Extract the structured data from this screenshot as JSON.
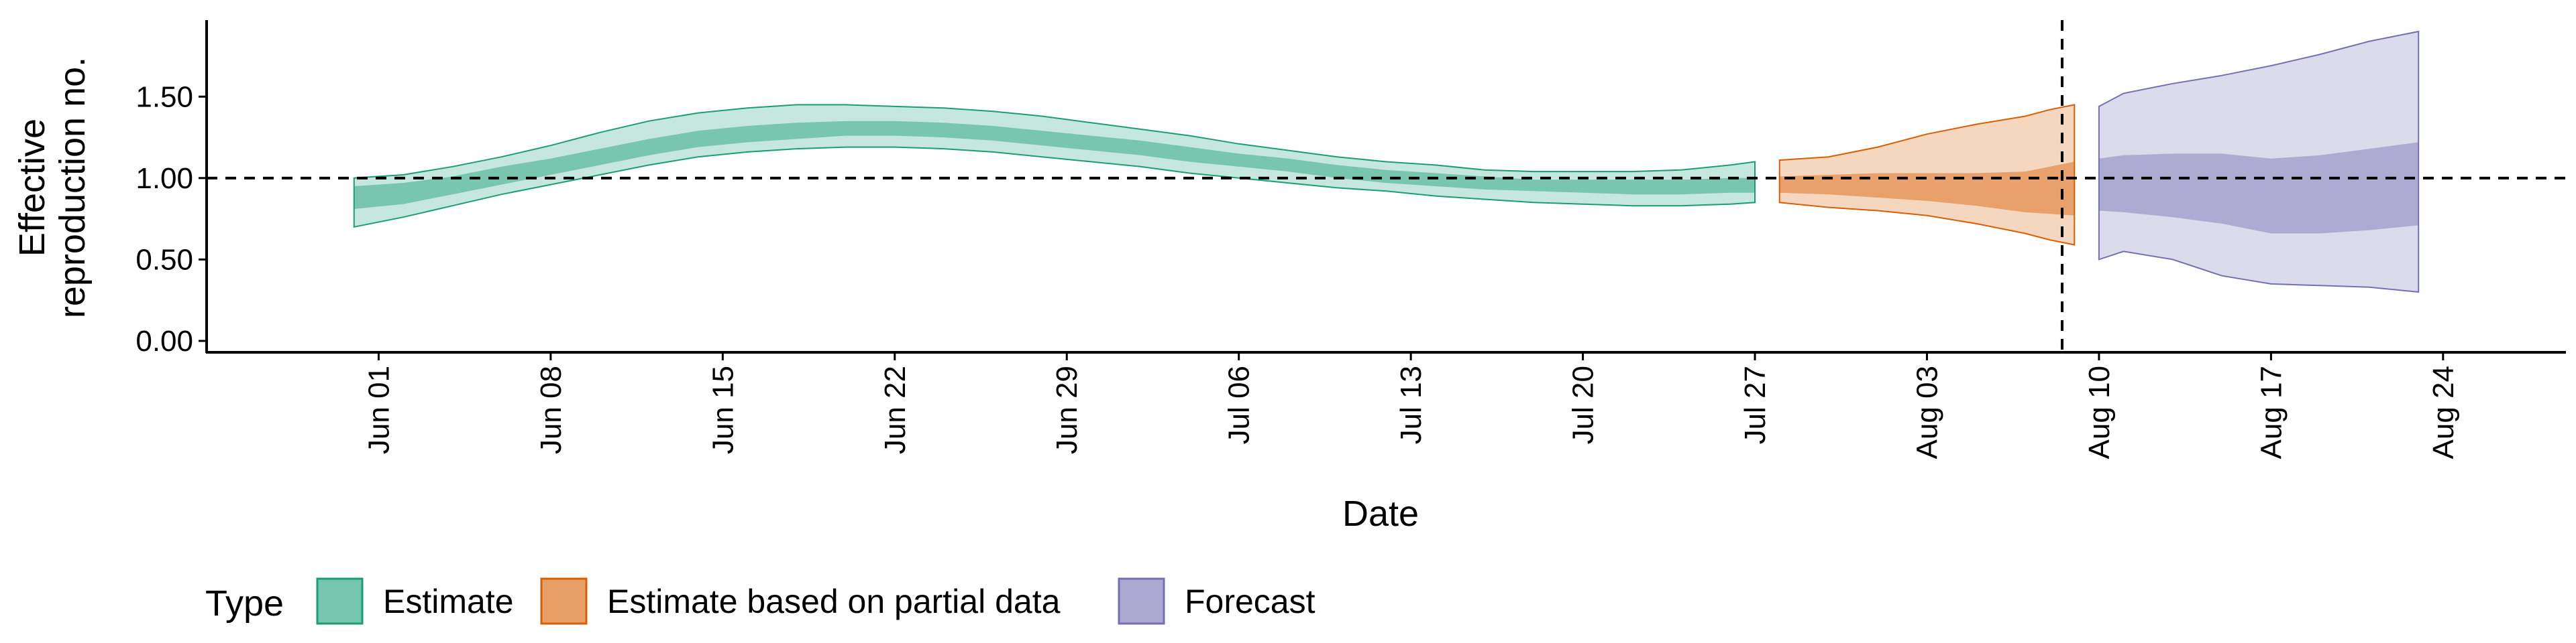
{
  "chart_data": {
    "type": "area",
    "xlabel": "Date",
    "ylabel_lines": [
      "Effective",
      "reproduction no."
    ],
    "yticks": [
      "0.00",
      "0.50",
      "1.00",
      "1.50"
    ],
    "ylim": [
      -0.07,
      1.97
    ],
    "reference_line_y": 1.0,
    "forecast_start_line_x": "2020-08-09",
    "xlim": [
      "2020-05-25",
      "2020-08-29"
    ],
    "xticks": [
      {
        "date": "2020-06-01",
        "label": "Jun 01"
      },
      {
        "date": "2020-06-08",
        "label": "Jun 08"
      },
      {
        "date": "2020-06-15",
        "label": "Jun 15"
      },
      {
        "date": "2020-06-22",
        "label": "Jun 22"
      },
      {
        "date": "2020-06-29",
        "label": "Jun 29"
      },
      {
        "date": "2020-07-06",
        "label": "Jul 06"
      },
      {
        "date": "2020-07-13",
        "label": "Jul 13"
      },
      {
        "date": "2020-07-20",
        "label": "Jul 20"
      },
      {
        "date": "2020-07-27",
        "label": "Jul 27"
      },
      {
        "date": "2020-08-03",
        "label": "Aug 03"
      },
      {
        "date": "2020-08-10",
        "label": "Aug 10"
      },
      {
        "date": "2020-08-17",
        "label": "Aug 17"
      },
      {
        "date": "2020-08-24",
        "label": "Aug 24"
      }
    ],
    "legend": {
      "title": "Type",
      "placement": "bottom-left",
      "items": [
        {
          "label": "Estimate",
          "color": "#1b9e77"
        },
        {
          "label": "Estimate based on partial data",
          "color": "#d95f02"
        },
        {
          "label": "Forecast",
          "color": "#7570b3"
        }
      ]
    },
    "series": [
      {
        "name": "Estimate",
        "color": "#1b9e77",
        "x": [
          "2020-05-31",
          "2020-06-02",
          "2020-06-04",
          "2020-06-06",
          "2020-06-08",
          "2020-06-10",
          "2020-06-12",
          "2020-06-14",
          "2020-06-16",
          "2020-06-18",
          "2020-06-20",
          "2020-06-22",
          "2020-06-24",
          "2020-06-26",
          "2020-06-28",
          "2020-06-30",
          "2020-07-02",
          "2020-07-04",
          "2020-07-06",
          "2020-07-08",
          "2020-07-10",
          "2020-07-12",
          "2020-07-14",
          "2020-07-16",
          "2020-07-18",
          "2020-07-20",
          "2020-07-22",
          "2020-07-24",
          "2020-07-26",
          "2020-07-27"
        ],
        "lower90": [
          0.7,
          0.76,
          0.83,
          0.9,
          0.96,
          1.02,
          1.08,
          1.13,
          1.16,
          1.18,
          1.19,
          1.19,
          1.18,
          1.16,
          1.13,
          1.1,
          1.07,
          1.03,
          1.0,
          0.97,
          0.94,
          0.92,
          0.89,
          0.87,
          0.85,
          0.84,
          0.83,
          0.83,
          0.84,
          0.85
        ],
        "lower50": [
          0.81,
          0.84,
          0.9,
          0.96,
          1.02,
          1.08,
          1.14,
          1.19,
          1.22,
          1.24,
          1.26,
          1.26,
          1.25,
          1.23,
          1.2,
          1.17,
          1.14,
          1.1,
          1.07,
          1.04,
          1.0,
          0.97,
          0.95,
          0.93,
          0.92,
          0.91,
          0.9,
          0.9,
          0.91,
          0.91
        ],
        "upper50": [
          0.95,
          0.97,
          1.01,
          1.07,
          1.12,
          1.18,
          1.24,
          1.29,
          1.32,
          1.34,
          1.35,
          1.35,
          1.34,
          1.32,
          1.29,
          1.26,
          1.23,
          1.19,
          1.15,
          1.12,
          1.08,
          1.05,
          1.03,
          1.01,
          0.99,
          0.99,
          0.99,
          0.99,
          1.0,
          1.0
        ],
        "upper90": [
          1.0,
          1.02,
          1.07,
          1.13,
          1.2,
          1.28,
          1.35,
          1.4,
          1.43,
          1.45,
          1.45,
          1.44,
          1.43,
          1.41,
          1.38,
          1.34,
          1.3,
          1.26,
          1.21,
          1.17,
          1.13,
          1.1,
          1.08,
          1.05,
          1.04,
          1.04,
          1.04,
          1.05,
          1.08,
          1.1
        ]
      },
      {
        "name": "Estimate based on partial data",
        "color": "#d95f02",
        "x": [
          "2020-07-28",
          "2020-07-30",
          "2020-08-01",
          "2020-08-03",
          "2020-08-05",
          "2020-08-07",
          "2020-08-08",
          "2020-08-09"
        ],
        "lower90": [
          0.85,
          0.82,
          0.8,
          0.77,
          0.72,
          0.66,
          0.62,
          0.59
        ],
        "lower50": [
          0.91,
          0.9,
          0.88,
          0.86,
          0.83,
          0.79,
          0.78,
          0.77
        ],
        "upper50": [
          1.01,
          1.02,
          1.03,
          1.03,
          1.03,
          1.04,
          1.07,
          1.1
        ],
        "upper90": [
          1.11,
          1.13,
          1.19,
          1.27,
          1.33,
          1.38,
          1.42,
          1.45
        ]
      },
      {
        "name": "Forecast",
        "color": "#7570b3",
        "x": [
          "2020-08-10",
          "2020-08-11",
          "2020-08-13",
          "2020-08-15",
          "2020-08-17",
          "2020-08-19",
          "2020-08-21",
          "2020-08-23"
        ],
        "lower90": [
          0.5,
          0.55,
          0.5,
          0.4,
          0.35,
          0.34,
          0.33,
          0.3
        ],
        "lower50": [
          0.8,
          0.79,
          0.76,
          0.72,
          0.66,
          0.66,
          0.68,
          0.71
        ],
        "upper50": [
          1.12,
          1.14,
          1.15,
          1.15,
          1.12,
          1.14,
          1.18,
          1.22
        ],
        "upper90": [
          1.44,
          1.52,
          1.58,
          1.63,
          1.69,
          1.76,
          1.84,
          1.9
        ]
      }
    ]
  }
}
